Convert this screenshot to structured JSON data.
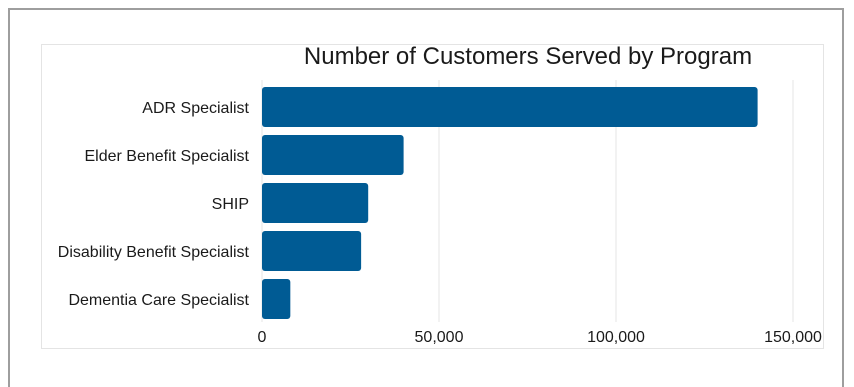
{
  "chart_data": {
    "type": "bar",
    "orientation": "horizontal",
    "title": "Number of Customers Served by Program",
    "xlabel": "",
    "ylabel": "",
    "categories": [
      "ADR Specialist",
      "Elder Benefit Specialist",
      "SHIP",
      "Disability Benefit Specialist",
      "Dementia Care Specialist"
    ],
    "values": [
      140000,
      40000,
      30000,
      28000,
      8000
    ],
    "xlim": [
      0,
      155000
    ],
    "x_ticks": [
      0,
      50000,
      100000,
      150000
    ],
    "x_tick_labels": [
      "0",
      "50,000",
      "100,000",
      "150,000"
    ],
    "grid": "vertical",
    "legend": "none",
    "colors": {
      "bar": "#005b94",
      "grid": "#e6e6e6",
      "text": "#1a1a1a"
    }
  }
}
